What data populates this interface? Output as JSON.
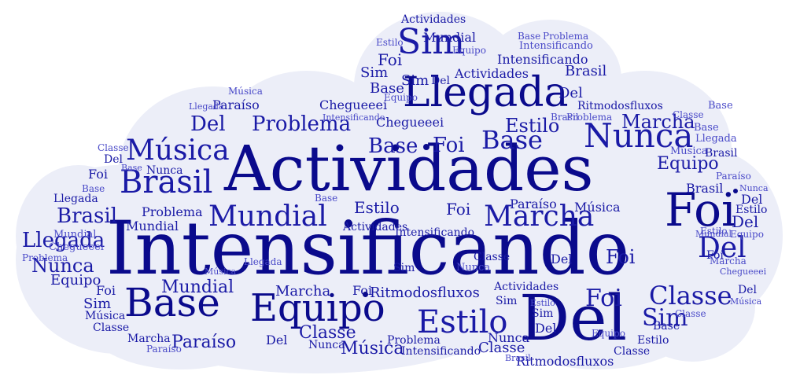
{
  "colors": {
    "background": "#ffffff",
    "cloud": "#eceef8",
    "dark": "#0a0a8c",
    "medium": "#1a1aa6",
    "light": "#4a4ac8"
  },
  "words": {
    "intensificando": "Intensificando",
    "actividades": "Actividades",
    "del": "Del",
    "llegada": "Llegada",
    "foi": "Foi",
    "sim": "Sim",
    "base": "Base",
    "equipo": "Equipo",
    "brasil": "Brasil",
    "nunca": "Nunca",
    "musica": "Música",
    "estilo": "Estilo",
    "mundial": "Mundial",
    "marcha": "Marcha",
    "classe": "Classe",
    "problema": "Problema",
    "paraiso": "Paraíso",
    "chegueeei": "Chegueeei",
    "ritmodosfluxos": "Ritmodosfluxos"
  }
}
